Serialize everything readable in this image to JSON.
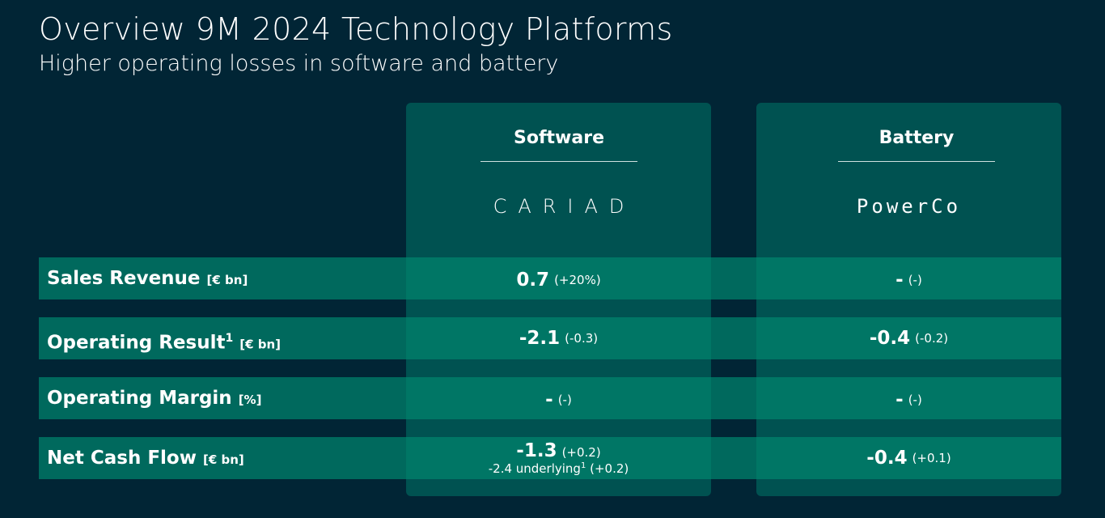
{
  "title": "Overview 9M 2024 Technology Platforms",
  "subtitle": "Higher operating losses in software and battery",
  "columns": {
    "software": {
      "header": "Software",
      "logo_text": "CARIAD"
    },
    "battery": {
      "header": "Battery",
      "logo_text": "PowerCo"
    }
  },
  "rows": [
    {
      "label": "Sales Revenue",
      "sup": "",
      "unit": "[€ bn]",
      "software": {
        "value": "0.7",
        "change": "(+20%)"
      },
      "battery": {
        "value": "-",
        "change": "(-)"
      }
    },
    {
      "label": "Operating Result",
      "sup": "1",
      "unit": "[€ bn]",
      "software": {
        "value": "-2.1",
        "change": "(-0.3)"
      },
      "battery": {
        "value": "-0.4",
        "change": "(-0.2)"
      }
    },
    {
      "label": "Operating Margin",
      "sup": "",
      "unit": "[%]",
      "software": {
        "value": "-",
        "change": "(-)"
      },
      "battery": {
        "value": "-",
        "change": "(-)"
      }
    },
    {
      "label": "Net Cash Flow",
      "sup": "",
      "unit": "[€ bn]",
      "software": {
        "value": "-1.3",
        "change": "(+0.2)",
        "sub_text": "-2.4 underlying",
        "sub_sup": "1",
        "sub_change": "(+0.2)"
      },
      "battery": {
        "value": "-0.4",
        "change": "(+0.1)"
      }
    }
  ]
}
